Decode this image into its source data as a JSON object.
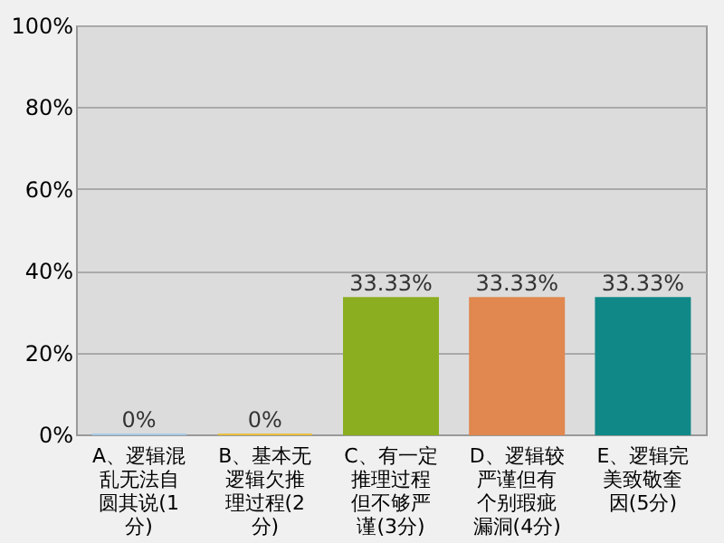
{
  "chart_data": {
    "type": "bar",
    "categories": [
      "A、逻辑混乱无法自圆其说(1分)",
      "B、基本无逻辑欠推理过程(2分)",
      "C、有一定推理过程但不够严谨(3分)",
      "D、逻辑较严谨但有个别瑕疵漏洞(4分)",
      "E、逻辑完美致敬奎因(5分)"
    ],
    "values": [
      0,
      0,
      33.33,
      33.33,
      33.33
    ],
    "colors": [
      "#a8cbe8",
      "#e8c040",
      "#8aae20",
      "#e08850",
      "#108888"
    ],
    "value_labels": [
      "0%",
      "0%",
      "33.33%",
      "33.33%",
      "33.33%"
    ],
    "ylim": [
      0,
      100
    ],
    "yticks": [
      {
        "value": 0,
        "label": "0%"
      },
      {
        "value": 20,
        "label": "20%"
      },
      {
        "value": 40,
        "label": "40%"
      },
      {
        "value": 60,
        "label": "60%"
      },
      {
        "value": 80,
        "label": "80%"
      },
      {
        "value": 100,
        "label": "100%"
      }
    ],
    "grid": "y"
  }
}
